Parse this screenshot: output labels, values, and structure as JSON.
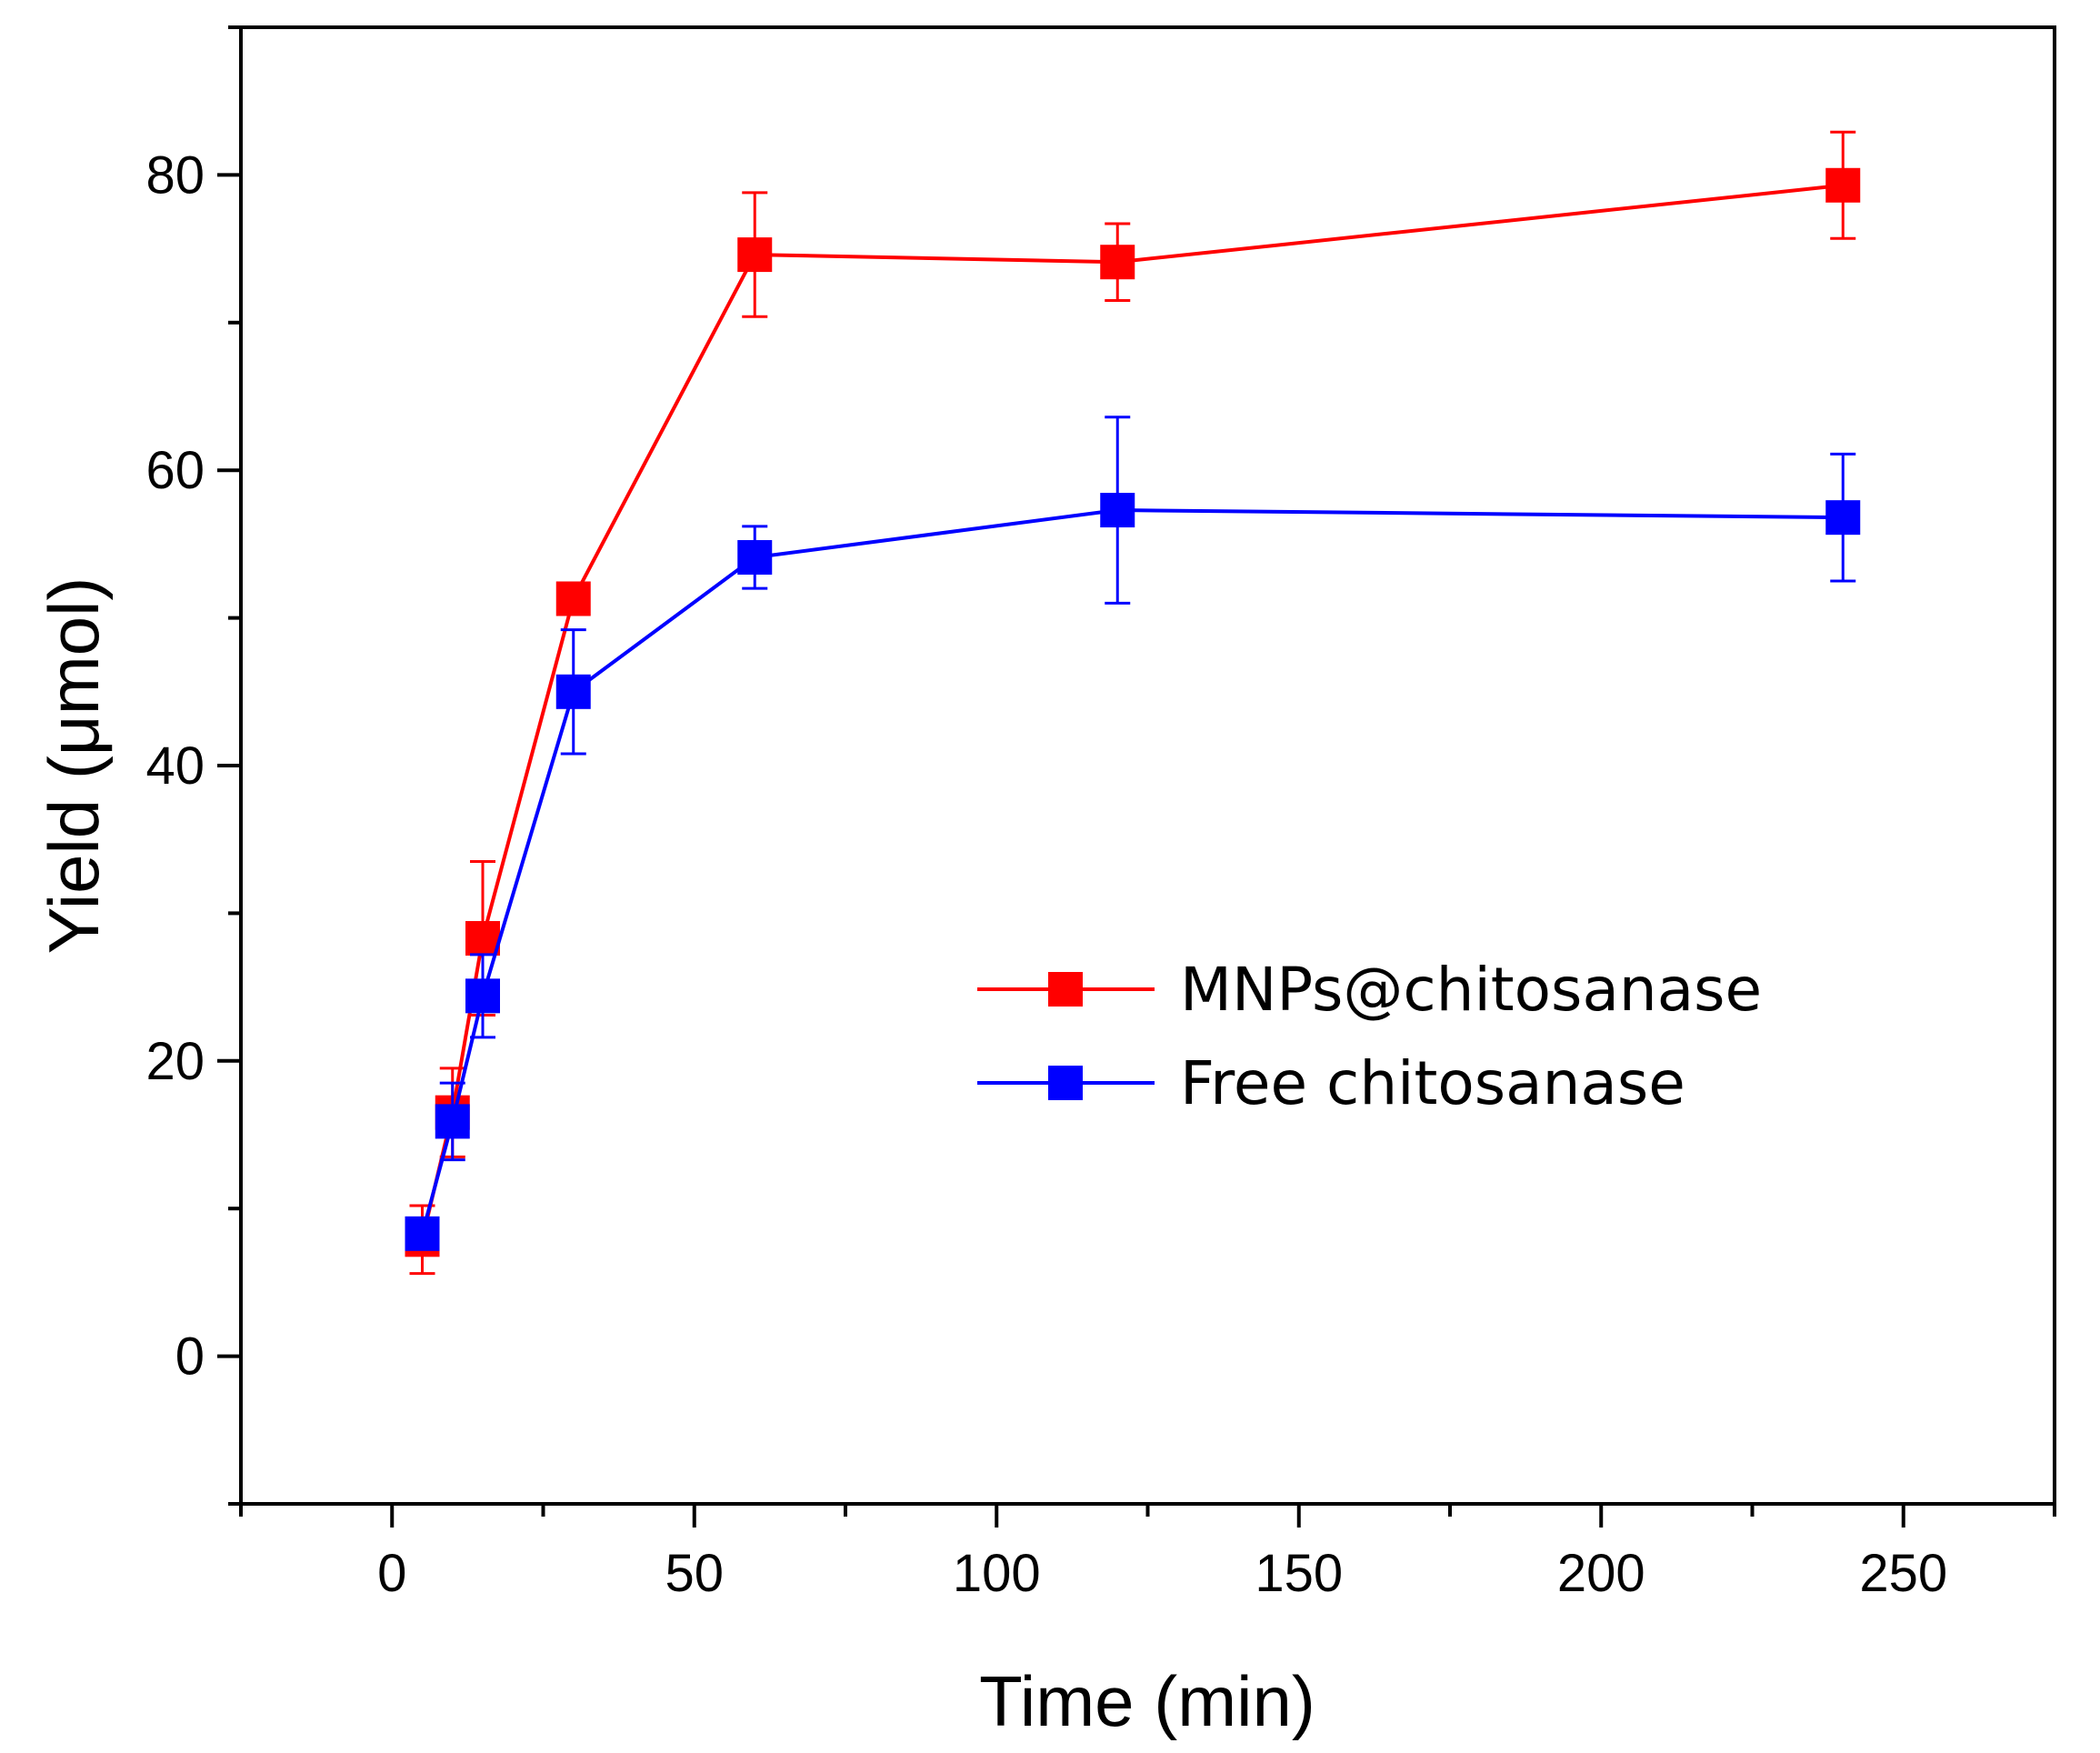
{
  "chart_data": {
    "type": "line",
    "title": "",
    "xlabel": "Time (min)",
    "ylabel": "Yield (μmol)",
    "xlim": [
      -25,
      275
    ],
    "ylim": [
      -10,
      90
    ],
    "xticks": [
      0,
      50,
      100,
      150,
      200,
      250
    ],
    "xtick_labels": [
      "0",
      "50",
      "100",
      "150",
      "200",
      "250"
    ],
    "yticks": [
      0,
      20,
      40,
      60,
      80
    ],
    "ytick_labels": [
      "0",
      "20",
      "40",
      "60",
      "80"
    ],
    "grid": false,
    "legend_position": "center-right",
    "series": [
      {
        "name": "MNPs@chitosanase",
        "color": "#ff0000",
        "x": [
          5,
          10,
          15,
          30,
          60,
          120,
          240
        ],
        "y": [
          7.9,
          16.5,
          28.3,
          51.3,
          74.6,
          74.1,
          79.3
        ],
        "err": [
          2.3,
          3.0,
          5.2,
          0.0,
          4.2,
          2.6,
          3.6
        ]
      },
      {
        "name": "Free chitosanase",
        "color": "#0000ff",
        "x": [
          5,
          10,
          15,
          30,
          60,
          120,
          240
        ],
        "y": [
          8.3,
          15.9,
          24.4,
          45.0,
          54.1,
          57.3,
          56.8
        ],
        "err": [
          0.0,
          2.6,
          2.8,
          4.2,
          2.1,
          6.3,
          4.3
        ]
      }
    ]
  }
}
